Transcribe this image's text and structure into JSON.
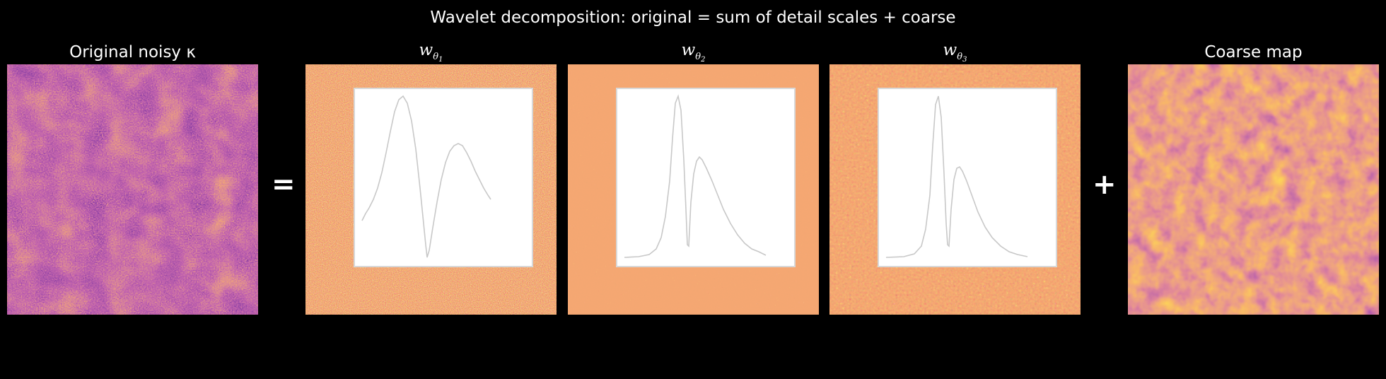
{
  "suptitle": "Wavelet decomposition: original = sum of detail scales + coarse",
  "panels": {
    "original": {
      "title": "Original noisy κ"
    },
    "w1": {
      "title_base": "w",
      "title_sub": "θ",
      "title_subsub": "1"
    },
    "w2": {
      "title_base": "w",
      "title_sub": "θ",
      "title_subsub": "2"
    },
    "w3": {
      "title_base": "w",
      "title_sub": "θ",
      "title_subsub": "3"
    },
    "coarse": {
      "title": "Coarse map"
    }
  },
  "operators": {
    "equals": "=",
    "plus": "+"
  },
  "colormap": "inferno",
  "colors": {
    "background": "#000000",
    "detail_fill": "#e8632b",
    "inset_line": "#c8c8c8",
    "inset_bg": "#ffffff"
  }
}
